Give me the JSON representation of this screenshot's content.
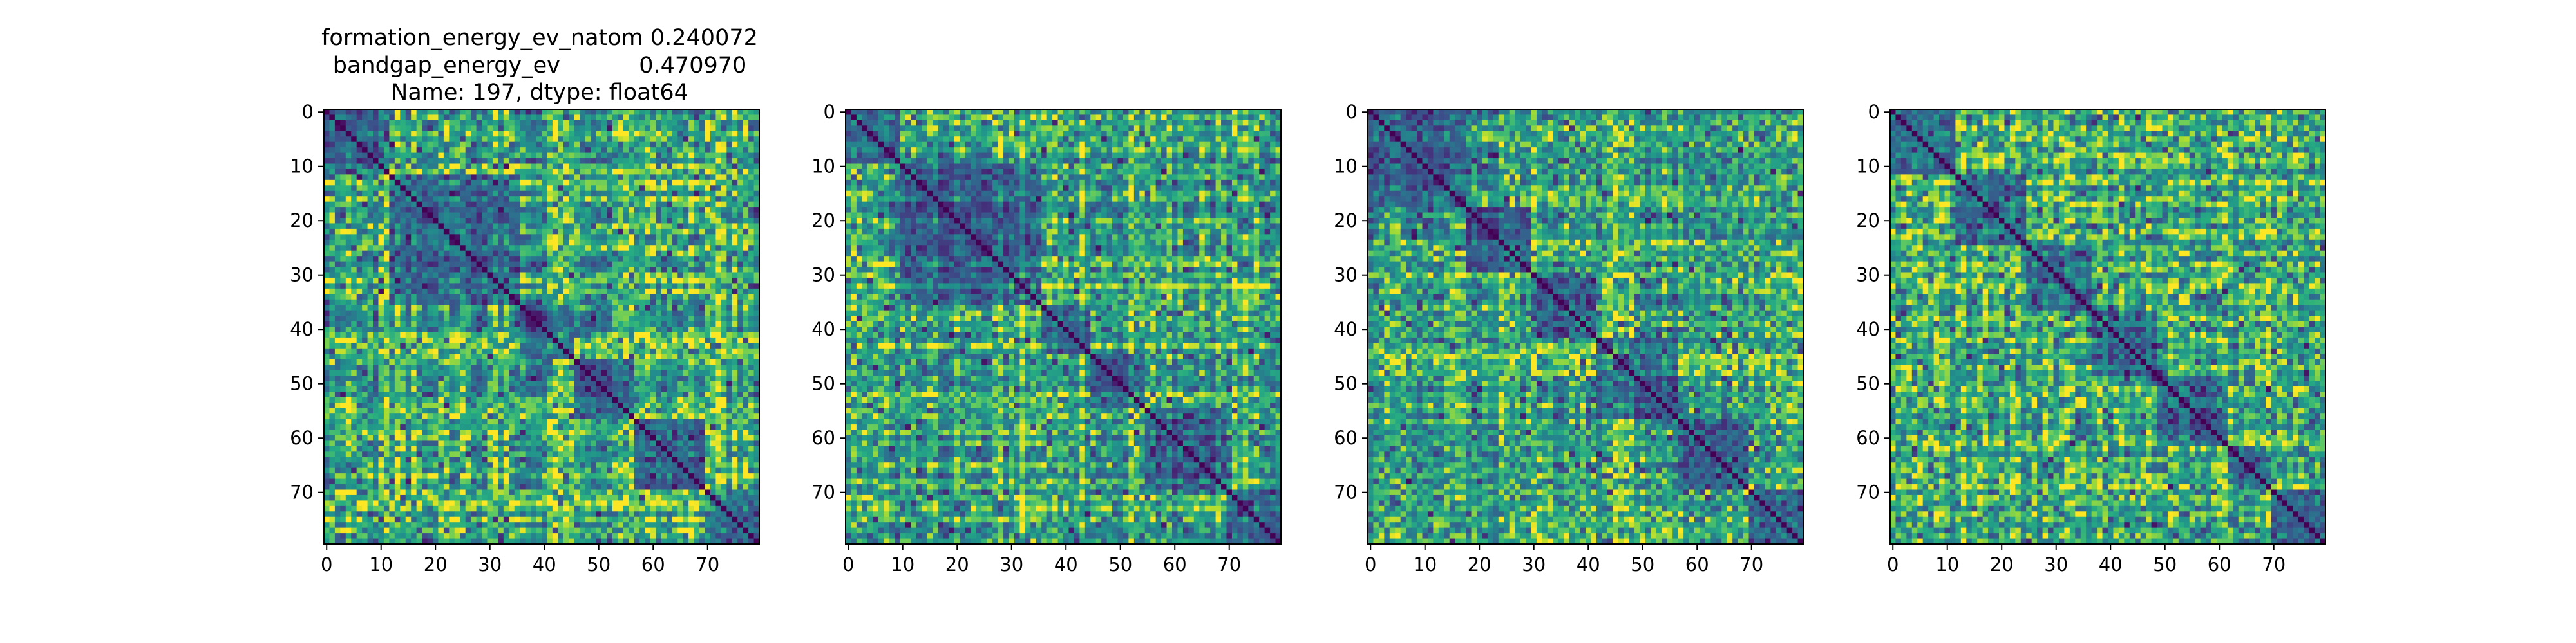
{
  "figure": {
    "title_lines": [
      "formation_energy_ev_natom    0.240072",
      "bandgap_energy_ev           0.470970",
      "Name: 197, dtype: float64"
    ]
  },
  "chart_data": [
    {
      "type": "heatmap",
      "matrix_size": 80,
      "colormap": "viridis",
      "xlim": [
        0,
        79
      ],
      "ylim": [
        79,
        0
      ],
      "x_ticks": [
        0,
        10,
        20,
        30,
        40,
        50,
        60,
        70
      ],
      "y_ticks": [
        0,
        10,
        20,
        30,
        40,
        50,
        60,
        70
      ],
      "diagonal": 0,
      "block_boundaries": [
        12,
        36,
        46,
        57,
        70
      ],
      "title": "formation_energy_ev_natom    0.240072\nbandgap_energy_ev           0.470970\nName: 197, dtype: float64"
    },
    {
      "type": "heatmap",
      "matrix_size": 80,
      "colormap": "viridis",
      "xlim": [
        0,
        79
      ],
      "ylim": [
        79,
        0
      ],
      "x_ticks": [
        0,
        10,
        20,
        30,
        40,
        50,
        60,
        70
      ],
      "y_ticks": [
        0,
        10,
        20,
        30,
        40,
        50,
        60,
        70
      ],
      "diagonal": 0,
      "block_boundaries": [
        10,
        36,
        45,
        55,
        70
      ]
    },
    {
      "type": "heatmap",
      "matrix_size": 80,
      "colormap": "viridis",
      "xlim": [
        0,
        79
      ],
      "ylim": [
        79,
        0
      ],
      "x_ticks": [
        0,
        10,
        20,
        30,
        40,
        50,
        60,
        70
      ],
      "y_ticks": [
        0,
        10,
        20,
        30,
        40,
        50,
        60,
        70
      ],
      "diagonal": 0,
      "block_boundaries": [
        18,
        30,
        42,
        57,
        70
      ]
    },
    {
      "type": "heatmap",
      "matrix_size": 80,
      "colormap": "viridis",
      "xlim": [
        0,
        79
      ],
      "ylim": [
        79,
        0
      ],
      "x_ticks": [
        0,
        10,
        20,
        30,
        40,
        50,
        60,
        70
      ],
      "y_ticks": [
        0,
        10,
        20,
        30,
        40,
        50,
        60,
        70
      ],
      "diagonal": 0,
      "block_boundaries": [
        12,
        25,
        37,
        49,
        62,
        70
      ]
    }
  ]
}
